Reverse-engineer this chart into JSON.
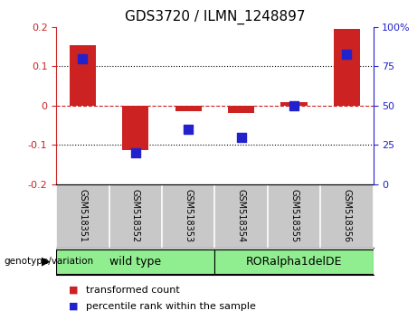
{
  "title": "GDS3720 / ILMN_1248897",
  "categories": [
    "GSM518351",
    "GSM518352",
    "GSM518353",
    "GSM518354",
    "GSM518355",
    "GSM518356"
  ],
  "red_bars": [
    0.155,
    -0.113,
    -0.015,
    -0.018,
    0.008,
    0.195
  ],
  "blue_dots_pct": [
    80,
    20,
    35,
    30,
    50,
    83
  ],
  "ylim_left": [
    -0.2,
    0.2
  ],
  "ylim_right": [
    0,
    100
  ],
  "yticks_left": [
    -0.2,
    -0.1,
    0.0,
    0.1,
    0.2
  ],
  "yticks_right": [
    0,
    25,
    50,
    75,
    100
  ],
  "ytick_labels_left": [
    "-0.2",
    "-0.1",
    "0",
    "0.1",
    "0.2"
  ],
  "ytick_labels_right": [
    "0",
    "25",
    "50",
    "75",
    "100%"
  ],
  "groups": [
    {
      "label": "wild type",
      "span": [
        0,
        2
      ]
    },
    {
      "label": "RORalpha1delDE",
      "span": [
        3,
        5
      ]
    }
  ],
  "group_label_prefix": "genotype/variation",
  "legend_red": "transformed count",
  "legend_blue": "percentile rank within the sample",
  "bar_color": "#cc2222",
  "dot_color": "#2222cc",
  "group_color": "#90EE90",
  "xticklabel_bg": "#c8c8c8",
  "bar_width": 0.5,
  "dot_size": 45,
  "title_fontsize": 11,
  "tick_fontsize": 8,
  "cat_fontsize": 7,
  "legend_fontsize": 8,
  "group_fontsize": 9
}
